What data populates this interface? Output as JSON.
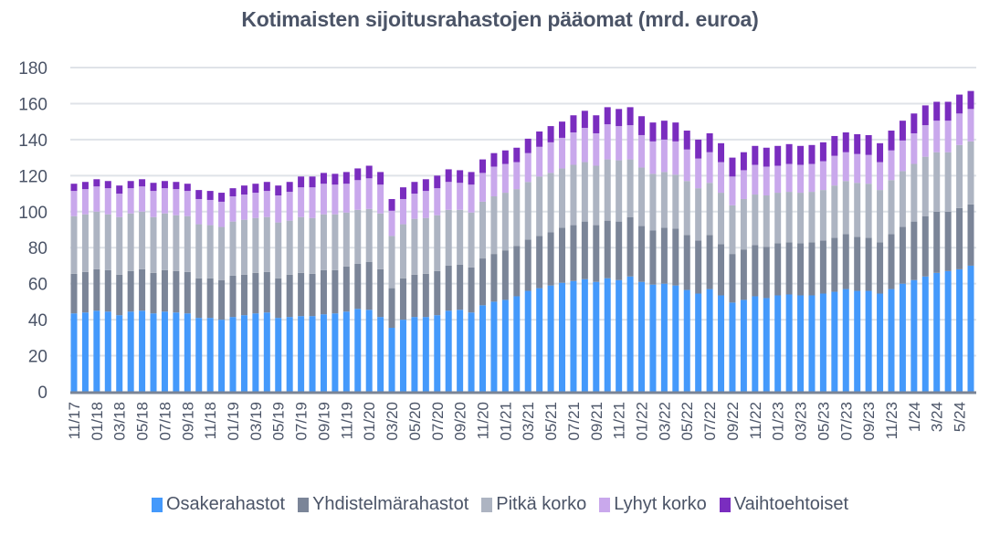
{
  "chart_data": {
    "type": "bar",
    "stacked": true,
    "title": "Kotimaisten sijoitusrahastojen pääomat (mrd. euroa)",
    "xlabel": "",
    "ylabel": "",
    "ylim": [
      0,
      180
    ],
    "yticks": [
      0,
      20,
      40,
      60,
      80,
      100,
      120,
      140,
      160,
      180
    ],
    "grid": true,
    "legend_position": "bottom",
    "categories": [
      "11/17",
      "12/17",
      "01/18",
      "02/18",
      "03/18",
      "04/18",
      "05/18",
      "06/18",
      "07/18",
      "08/18",
      "09/18",
      "10/18",
      "11/18",
      "12/18",
      "01/19",
      "02/19",
      "03/19",
      "04/19",
      "05/19",
      "06/19",
      "07/19",
      "08/19",
      "09/19",
      "10/19",
      "11/19",
      "12/19",
      "01/20",
      "02/20",
      "03/20",
      "04/20",
      "05/20",
      "06/20",
      "07/20",
      "08/20",
      "09/20",
      "10/20",
      "11/20",
      "12/20",
      "01/21",
      "02/21",
      "03/21",
      "04/21",
      "05/21",
      "06/21",
      "07/21",
      "08/21",
      "09/21",
      "10/21",
      "11/21",
      "12/21",
      "01/22",
      "02/22",
      "03/22",
      "04/22",
      "05/22",
      "06/22",
      "07/22",
      "08/22",
      "09/22",
      "10/22",
      "11/22",
      "12/22",
      "01/23",
      "02/23",
      "03/23",
      "04/23",
      "05/23",
      "06/23",
      "07/23",
      "08/23",
      "09/23",
      "10/23",
      "11/23",
      "12/23",
      "1/24",
      "2/24",
      "3/24",
      "4/24",
      "5/24",
      "6/24"
    ],
    "tick_labels": [
      "11/17",
      "01/18",
      "03/18",
      "05/18",
      "07/18",
      "09/18",
      "11/18",
      "01/19",
      "03/19",
      "05/19",
      "07/19",
      "09/19",
      "11/19",
      "01/20",
      "03/20",
      "05/20",
      "07/20",
      "09/20",
      "11/20",
      "01/21",
      "03/21",
      "05/21",
      "07/21",
      "09/21",
      "11/21",
      "01/22",
      "03/22",
      "05/22",
      "07/22",
      "09/22",
      "11/22",
      "01/23",
      "03/23",
      "05/23",
      "07/23",
      "09/23",
      "11/23",
      "1/24",
      "3/24",
      "5/24"
    ],
    "series": [
      {
        "name": "Osakerahastot",
        "color": "#4499fb",
        "values": [
          43.5,
          44,
          45,
          44.5,
          42.5,
          44.5,
          45,
          43.5,
          44.5,
          44,
          43.5,
          41,
          41,
          40,
          41.5,
          42.5,
          43.5,
          44,
          41,
          41.5,
          42,
          42,
          43,
          43.5,
          44.5,
          46,
          45.5,
          41.5,
          35.5,
          40,
          41.5,
          41.5,
          42.5,
          45,
          45.5,
          44,
          48,
          50,
          51,
          53,
          56,
          57.5,
          59,
          60.5,
          61.5,
          62.5,
          61,
          63,
          62,
          64,
          61,
          59.5,
          60,
          59,
          56.5,
          54.5,
          57,
          53.5,
          49.5,
          51,
          53,
          52,
          53.5,
          54,
          53.5,
          53.5,
          54.5,
          55.5,
          57,
          56,
          56,
          54.5,
          57,
          60,
          62,
          64,
          66,
          67,
          68,
          70
        ]
      },
      {
        "name": "Yhdistelmärahastot",
        "color": "#7b8598",
        "values": [
          22,
          22.5,
          23,
          23,
          22.5,
          22.5,
          23,
          22.5,
          23,
          23,
          23,
          22,
          22,
          22,
          23,
          22.5,
          22.5,
          22.5,
          22,
          23.5,
          24,
          23.5,
          24.5,
          24,
          25,
          25,
          26.5,
          26.5,
          22,
          23,
          23.5,
          24,
          24.5,
          25,
          25,
          25,
          26,
          26.5,
          27.5,
          28,
          28.5,
          29,
          29.5,
          30.5,
          31,
          32,
          31.5,
          32,
          32.5,
          33,
          31,
          30,
          31,
          31.5,
          30.5,
          29.5,
          30,
          28.5,
          27,
          28,
          28.5,
          28.5,
          29,
          29,
          29,
          29.5,
          29.5,
          30,
          30.5,
          30,
          29.5,
          28.5,
          30.5,
          31.5,
          32.5,
          33.5,
          34,
          33,
          34,
          34
        ]
      },
      {
        "name": "Pitkä korko",
        "color": "#adb4c2",
        "values": [
          32,
          32,
          32,
          31,
          32,
          32,
          32,
          31,
          31.5,
          31,
          31,
          30,
          29.5,
          29.5,
          30,
          30.5,
          30.5,
          30.5,
          31,
          30,
          31,
          31,
          31,
          31,
          30,
          30,
          29.5,
          31,
          29,
          30,
          31,
          31,
          31,
          31,
          30.5,
          30.5,
          31.5,
          32,
          32,
          31.5,
          32,
          33,
          33,
          33,
          33.5,
          33,
          33,
          34,
          34,
          32,
          32.5,
          31.5,
          31,
          30,
          30,
          29,
          29,
          28.5,
          27,
          28,
          28,
          28.5,
          28,
          28,
          28,
          28,
          28,
          29,
          29.5,
          30,
          30,
          29,
          30,
          31,
          32,
          33,
          33,
          33,
          35,
          35
        ]
      },
      {
        "name": "Lyhyt korko",
        "color": "#c9a8ec",
        "values": [
          14,
          14,
          14,
          14.5,
          13,
          14,
          14,
          14.5,
          14,
          14.5,
          14,
          14,
          14,
          14,
          14,
          14,
          14,
          14.5,
          15,
          16,
          16.5,
          17,
          17,
          16.5,
          16,
          16.5,
          17,
          16,
          14,
          14,
          14,
          15,
          15,
          15.5,
          15,
          15.5,
          16,
          16.5,
          16,
          15,
          16,
          16.5,
          17,
          17,
          18,
          19,
          18,
          19.5,
          19,
          19,
          18,
          18,
          18,
          18.5,
          17.5,
          16.5,
          17,
          17,
          16,
          16,
          16.5,
          16,
          15,
          15.5,
          15.5,
          15.5,
          16,
          16.5,
          16,
          16,
          16,
          15.5,
          16.5,
          17,
          17,
          17.5,
          17.5,
          17.5,
          17.5,
          18
        ]
      },
      {
        "name": "Vaihtoehtoiset",
        "color": "#7a2dbf",
        "values": [
          4,
          4,
          4,
          4,
          4.5,
          4,
          4,
          4.5,
          4,
          4,
          4,
          5,
          5,
          5,
          4.5,
          5,
          5,
          5,
          5.5,
          5.5,
          6,
          6,
          6,
          6,
          6.5,
          6.5,
          7,
          7,
          6.5,
          6.5,
          6.5,
          6.5,
          7,
          7,
          7,
          7,
          7.5,
          7.5,
          7.5,
          8,
          8,
          8.5,
          9,
          9,
          9.5,
          9.5,
          10,
          9.5,
          9.5,
          10,
          10.5,
          10.5,
          10.5,
          10.5,
          10.5,
          10.5,
          10.5,
          10.5,
          10.5,
          10,
          10.5,
          10.5,
          11,
          11,
          10.5,
          10.5,
          10.5,
          11,
          11,
          11,
          11,
          10.5,
          11,
          11,
          11,
          11,
          10.5,
          10.5,
          10.5,
          10
        ]
      }
    ]
  }
}
